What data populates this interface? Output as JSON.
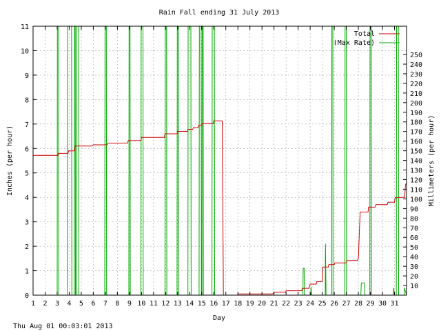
{
  "chart_data": {
    "type": "line",
    "title": "Rain Fall ending 31 July 2013",
    "xlabel": "Day",
    "ylabel": "Inches (per hour)",
    "y2label": "Millimeters (per hour)",
    "xlim": [
      1,
      32
    ],
    "ylim": [
      0,
      11
    ],
    "y2lim": [
      0,
      279.4
    ],
    "x_ticks": [
      1,
      2,
      3,
      4,
      5,
      6,
      7,
      8,
      9,
      10,
      11,
      12,
      13,
      14,
      15,
      16,
      17,
      18,
      19,
      20,
      21,
      22,
      23,
      24,
      25,
      26,
      27,
      28,
      29,
      30,
      31
    ],
    "y_ticks": [
      0,
      1,
      2,
      3,
      4,
      5,
      6,
      7,
      8,
      9,
      10,
      11
    ],
    "y2_ticks": [
      10,
      20,
      30,
      40,
      50,
      60,
      70,
      80,
      90,
      100,
      110,
      120,
      130,
      140,
      150,
      160,
      170,
      180,
      190,
      200,
      210,
      220,
      230,
      240,
      250
    ],
    "grid": true,
    "legend": "top-right",
    "footer": "Thu Aug 01 00:03:01 2013",
    "series": [
      {
        "name": "Total",
        "color": "#cc0000",
        "points": [
          [
            1,
            5.72
          ],
          [
            3.05,
            5.72
          ],
          [
            3.1,
            5.8
          ],
          [
            3.9,
            5.8
          ],
          [
            3.95,
            5.9
          ],
          [
            4.45,
            5.9
          ],
          [
            4.5,
            6.1
          ],
          [
            5.9,
            6.1
          ],
          [
            6,
            6.15
          ],
          [
            7.15,
            6.15
          ],
          [
            7.2,
            6.22
          ],
          [
            8.85,
            6.22
          ],
          [
            8.9,
            6.32
          ],
          [
            9.95,
            6.32
          ],
          [
            10,
            6.45
          ],
          [
            11.9,
            6.45
          ],
          [
            11.95,
            6.6
          ],
          [
            12.95,
            6.6
          ],
          [
            13,
            6.7
          ],
          [
            13.8,
            6.7
          ],
          [
            13.85,
            6.78
          ],
          [
            14.25,
            6.78
          ],
          [
            14.3,
            6.85
          ],
          [
            14.7,
            6.85
          ],
          [
            14.75,
            6.95
          ],
          [
            15,
            6.95
          ],
          [
            15.05,
            7.02
          ],
          [
            15.95,
            7.02
          ],
          [
            16,
            7.13
          ],
          [
            16.7,
            7.13
          ],
          [
            16.75,
            3.5
          ],
          [
            16.8,
            0
          ],
          [
            18,
            0
          ],
          [
            18.02,
            0.05
          ],
          [
            20.9,
            0.05
          ],
          [
            21,
            0.12
          ],
          [
            21.95,
            0.12
          ],
          [
            22,
            0.18
          ],
          [
            23.3,
            0.18
          ],
          [
            23.35,
            0.28
          ],
          [
            23.9,
            0.28
          ],
          [
            24,
            0.45
          ],
          [
            24.5,
            0.45
          ],
          [
            24.55,
            0.55
          ],
          [
            25,
            0.55
          ],
          [
            25.05,
            1.15
          ],
          [
            25.5,
            1.15
          ],
          [
            25.55,
            1.25
          ],
          [
            26,
            1.25
          ],
          [
            26.05,
            1.32
          ],
          [
            27,
            1.32
          ],
          [
            27.05,
            1.42
          ],
          [
            27.9,
            1.42
          ],
          [
            28,
            1.5
          ],
          [
            28.1,
            2.8
          ],
          [
            28.15,
            3.4
          ],
          [
            28.8,
            3.4
          ],
          [
            28.85,
            3.6
          ],
          [
            29.4,
            3.6
          ],
          [
            29.45,
            3.7
          ],
          [
            30.4,
            3.7
          ],
          [
            30.45,
            3.8
          ],
          [
            31,
            3.8
          ],
          [
            31.05,
            3.98
          ],
          [
            31.6,
            4.0
          ],
          [
            31.85,
            4.0
          ],
          [
            31.9,
            4.5
          ],
          [
            32,
            4.6
          ]
        ]
      },
      {
        "name": "(Max Rate)",
        "color": "#00aa00",
        "points": [
          [
            1,
            0
          ],
          [
            3.0,
            0
          ],
          [
            3.02,
            11
          ],
          [
            3.12,
            11
          ],
          [
            3.14,
            0
          ],
          [
            3.85,
            0
          ],
          [
            3.87,
            11
          ],
          [
            4.2,
            11
          ],
          [
            4.22,
            0
          ],
          [
            4.42,
            0
          ],
          [
            4.44,
            11
          ],
          [
            4.5,
            11
          ],
          [
            4.52,
            0
          ],
          [
            4.6,
            0
          ],
          [
            4.62,
            11
          ],
          [
            4.78,
            11
          ],
          [
            4.8,
            0
          ],
          [
            6.95,
            0
          ],
          [
            6.97,
            11
          ],
          [
            7.08,
            11
          ],
          [
            7.1,
            0
          ],
          [
            8.95,
            0
          ],
          [
            8.97,
            11
          ],
          [
            9.05,
            11
          ],
          [
            9.07,
            0
          ],
          [
            9.95,
            0
          ],
          [
            9.97,
            11
          ],
          [
            10.12,
            11
          ],
          [
            10.14,
            0
          ],
          [
            11.95,
            0
          ],
          [
            11.97,
            11
          ],
          [
            12.08,
            11
          ],
          [
            12.1,
            0
          ],
          [
            12.95,
            0
          ],
          [
            12.97,
            11
          ],
          [
            13.08,
            11
          ],
          [
            13.1,
            0
          ],
          [
            13.85,
            0
          ],
          [
            13.87,
            11
          ],
          [
            14.1,
            11
          ],
          [
            14.12,
            0
          ],
          [
            14.78,
            0
          ],
          [
            14.8,
            11
          ],
          [
            14.95,
            11
          ],
          [
            14.97,
            0
          ],
          [
            15.02,
            0
          ],
          [
            15.04,
            11
          ],
          [
            15.12,
            11
          ],
          [
            15.14,
            0
          ],
          [
            15.85,
            0
          ],
          [
            15.87,
            11
          ],
          [
            16.05,
            11
          ],
          [
            16.07,
            0
          ],
          [
            23.4,
            0
          ],
          [
            23.42,
            1.1
          ],
          [
            23.5,
            1.1
          ],
          [
            23.52,
            0
          ],
          [
            24.05,
            0
          ],
          [
            24.07,
            0.35
          ],
          [
            24.12,
            0
          ],
          [
            25.25,
            0
          ],
          [
            25.27,
            2.1
          ],
          [
            25.32,
            0
          ],
          [
            25.78,
            0
          ],
          [
            25.8,
            11
          ],
          [
            25.88,
            11
          ],
          [
            25.9,
            0
          ],
          [
            26.88,
            0
          ],
          [
            26.9,
            11
          ],
          [
            27.0,
            11
          ],
          [
            27.02,
            0
          ],
          [
            28.2,
            0
          ],
          [
            28.25,
            0.5
          ],
          [
            28.5,
            0.5
          ],
          [
            28.55,
            0
          ],
          [
            28.95,
            0
          ],
          [
            28.97,
            11
          ],
          [
            29.07,
            11
          ],
          [
            29.09,
            0
          ],
          [
            30.9,
            0
          ],
          [
            30.92,
            0.3
          ],
          [
            31.0,
            0
          ],
          [
            31.15,
            0
          ],
          [
            31.17,
            11
          ],
          [
            31.32,
            11
          ],
          [
            31.34,
            0
          ],
          [
            31.8,
            0
          ],
          [
            31.82,
            0.3
          ],
          [
            32,
            0
          ]
        ]
      }
    ]
  }
}
